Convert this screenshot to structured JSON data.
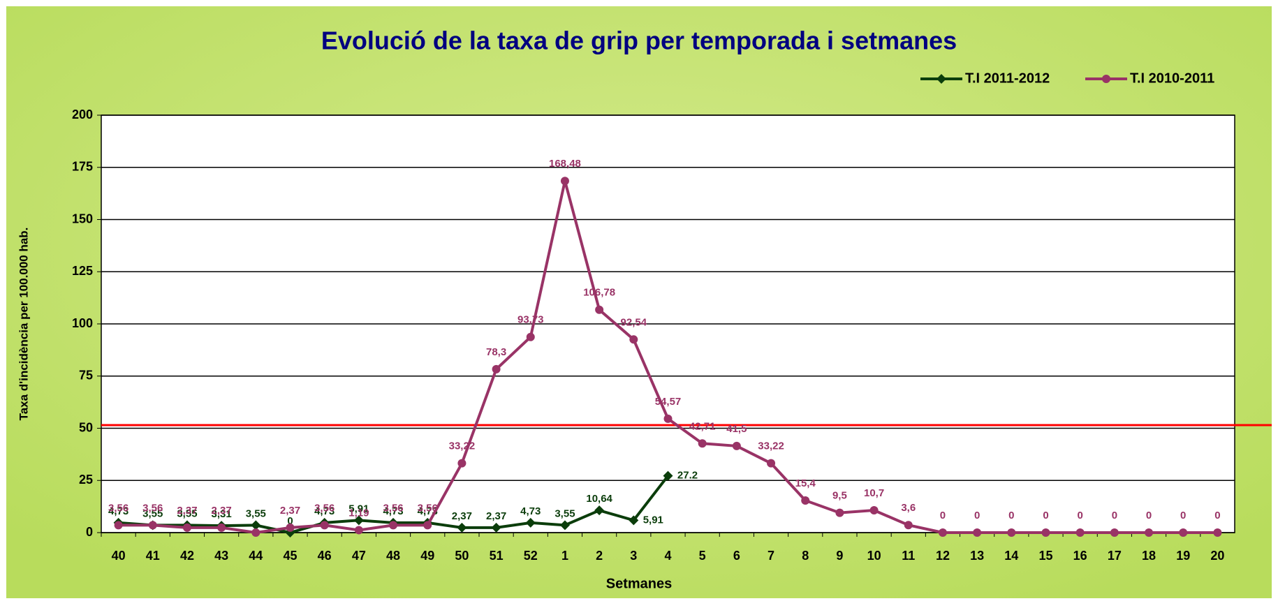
{
  "chart_data": {
    "type": "line",
    "title": "Evolució de la taxa de grip per temporada i setmanes",
    "x_label": "Setmanes",
    "y_label": "Taxa d'incidència per 100.000 hab.",
    "categories": [
      "40",
      "41",
      "42",
      "43",
      "44",
      "45",
      "46",
      "47",
      "48",
      "49",
      "50",
      "51",
      "52",
      "1",
      "2",
      "3",
      "4",
      "5",
      "6",
      "7",
      "8",
      "9",
      "10",
      "11",
      "12",
      "13",
      "14",
      "15",
      "16",
      "17",
      "18",
      "19",
      "20"
    ],
    "series": [
      {
        "name": "T.I 2011-2012",
        "color": "#0b3d0b",
        "marker": "diamond",
        "values": [
          4.73,
          3.55,
          3.55,
          3.31,
          3.55,
          0,
          4.73,
          5.91,
          4.73,
          4.73,
          2.37,
          2.37,
          4.73,
          3.55,
          10.64,
          5.91,
          27.2,
          null,
          null,
          null,
          null,
          null,
          null,
          null,
          null,
          null,
          null,
          null,
          null,
          null,
          null,
          null,
          null
        ],
        "value_labels": [
          "4,73",
          "3,55",
          "3,55",
          "3,31",
          "3,55",
          "0",
          "4,73",
          "5,91",
          "4,73",
          "4,73",
          "2,37",
          "2,37",
          "4,73",
          "3,55",
          "10,64",
          "5,91",
          "27.2",
          null,
          null,
          null,
          null,
          null,
          null,
          null,
          null,
          null,
          null,
          null,
          null,
          null,
          null,
          null,
          null
        ]
      },
      {
        "name": "T.I 2010-2011",
        "color": "#993366",
        "marker": "circle",
        "values": [
          3.56,
          3.56,
          2.37,
          2.37,
          0,
          2.37,
          3.56,
          1.19,
          3.56,
          3.56,
          33.22,
          78.3,
          93.73,
          168.48,
          106.78,
          92.54,
          54.57,
          42.71,
          41.5,
          33.22,
          15.4,
          9.5,
          10.7,
          3.6,
          0,
          0,
          0,
          0,
          0,
          0,
          0,
          0,
          0
        ],
        "value_labels": [
          "3,56",
          "3,56",
          "2,37",
          "2,37",
          null,
          "2,37",
          "3,56",
          "1,19",
          "3,56",
          "3,56",
          "33,22",
          "78,3",
          "93,73",
          "168,48",
          "106,78",
          "92,54",
          "54,57",
          "42,71",
          "41,5",
          "33,22",
          "15,4",
          "9,5",
          "10,7",
          "3,6",
          "0",
          "0",
          "0",
          "0",
          "0",
          "0",
          "0",
          "0",
          "0"
        ]
      }
    ],
    "ylim": [
      0,
      200
    ],
    "yticks": [
      0,
      25,
      50,
      75,
      100,
      125,
      150,
      175,
      200
    ],
    "grid": true,
    "reference_line": {
      "value": 51.5,
      "color": "#ff0000"
    },
    "legend": "top-right"
  }
}
